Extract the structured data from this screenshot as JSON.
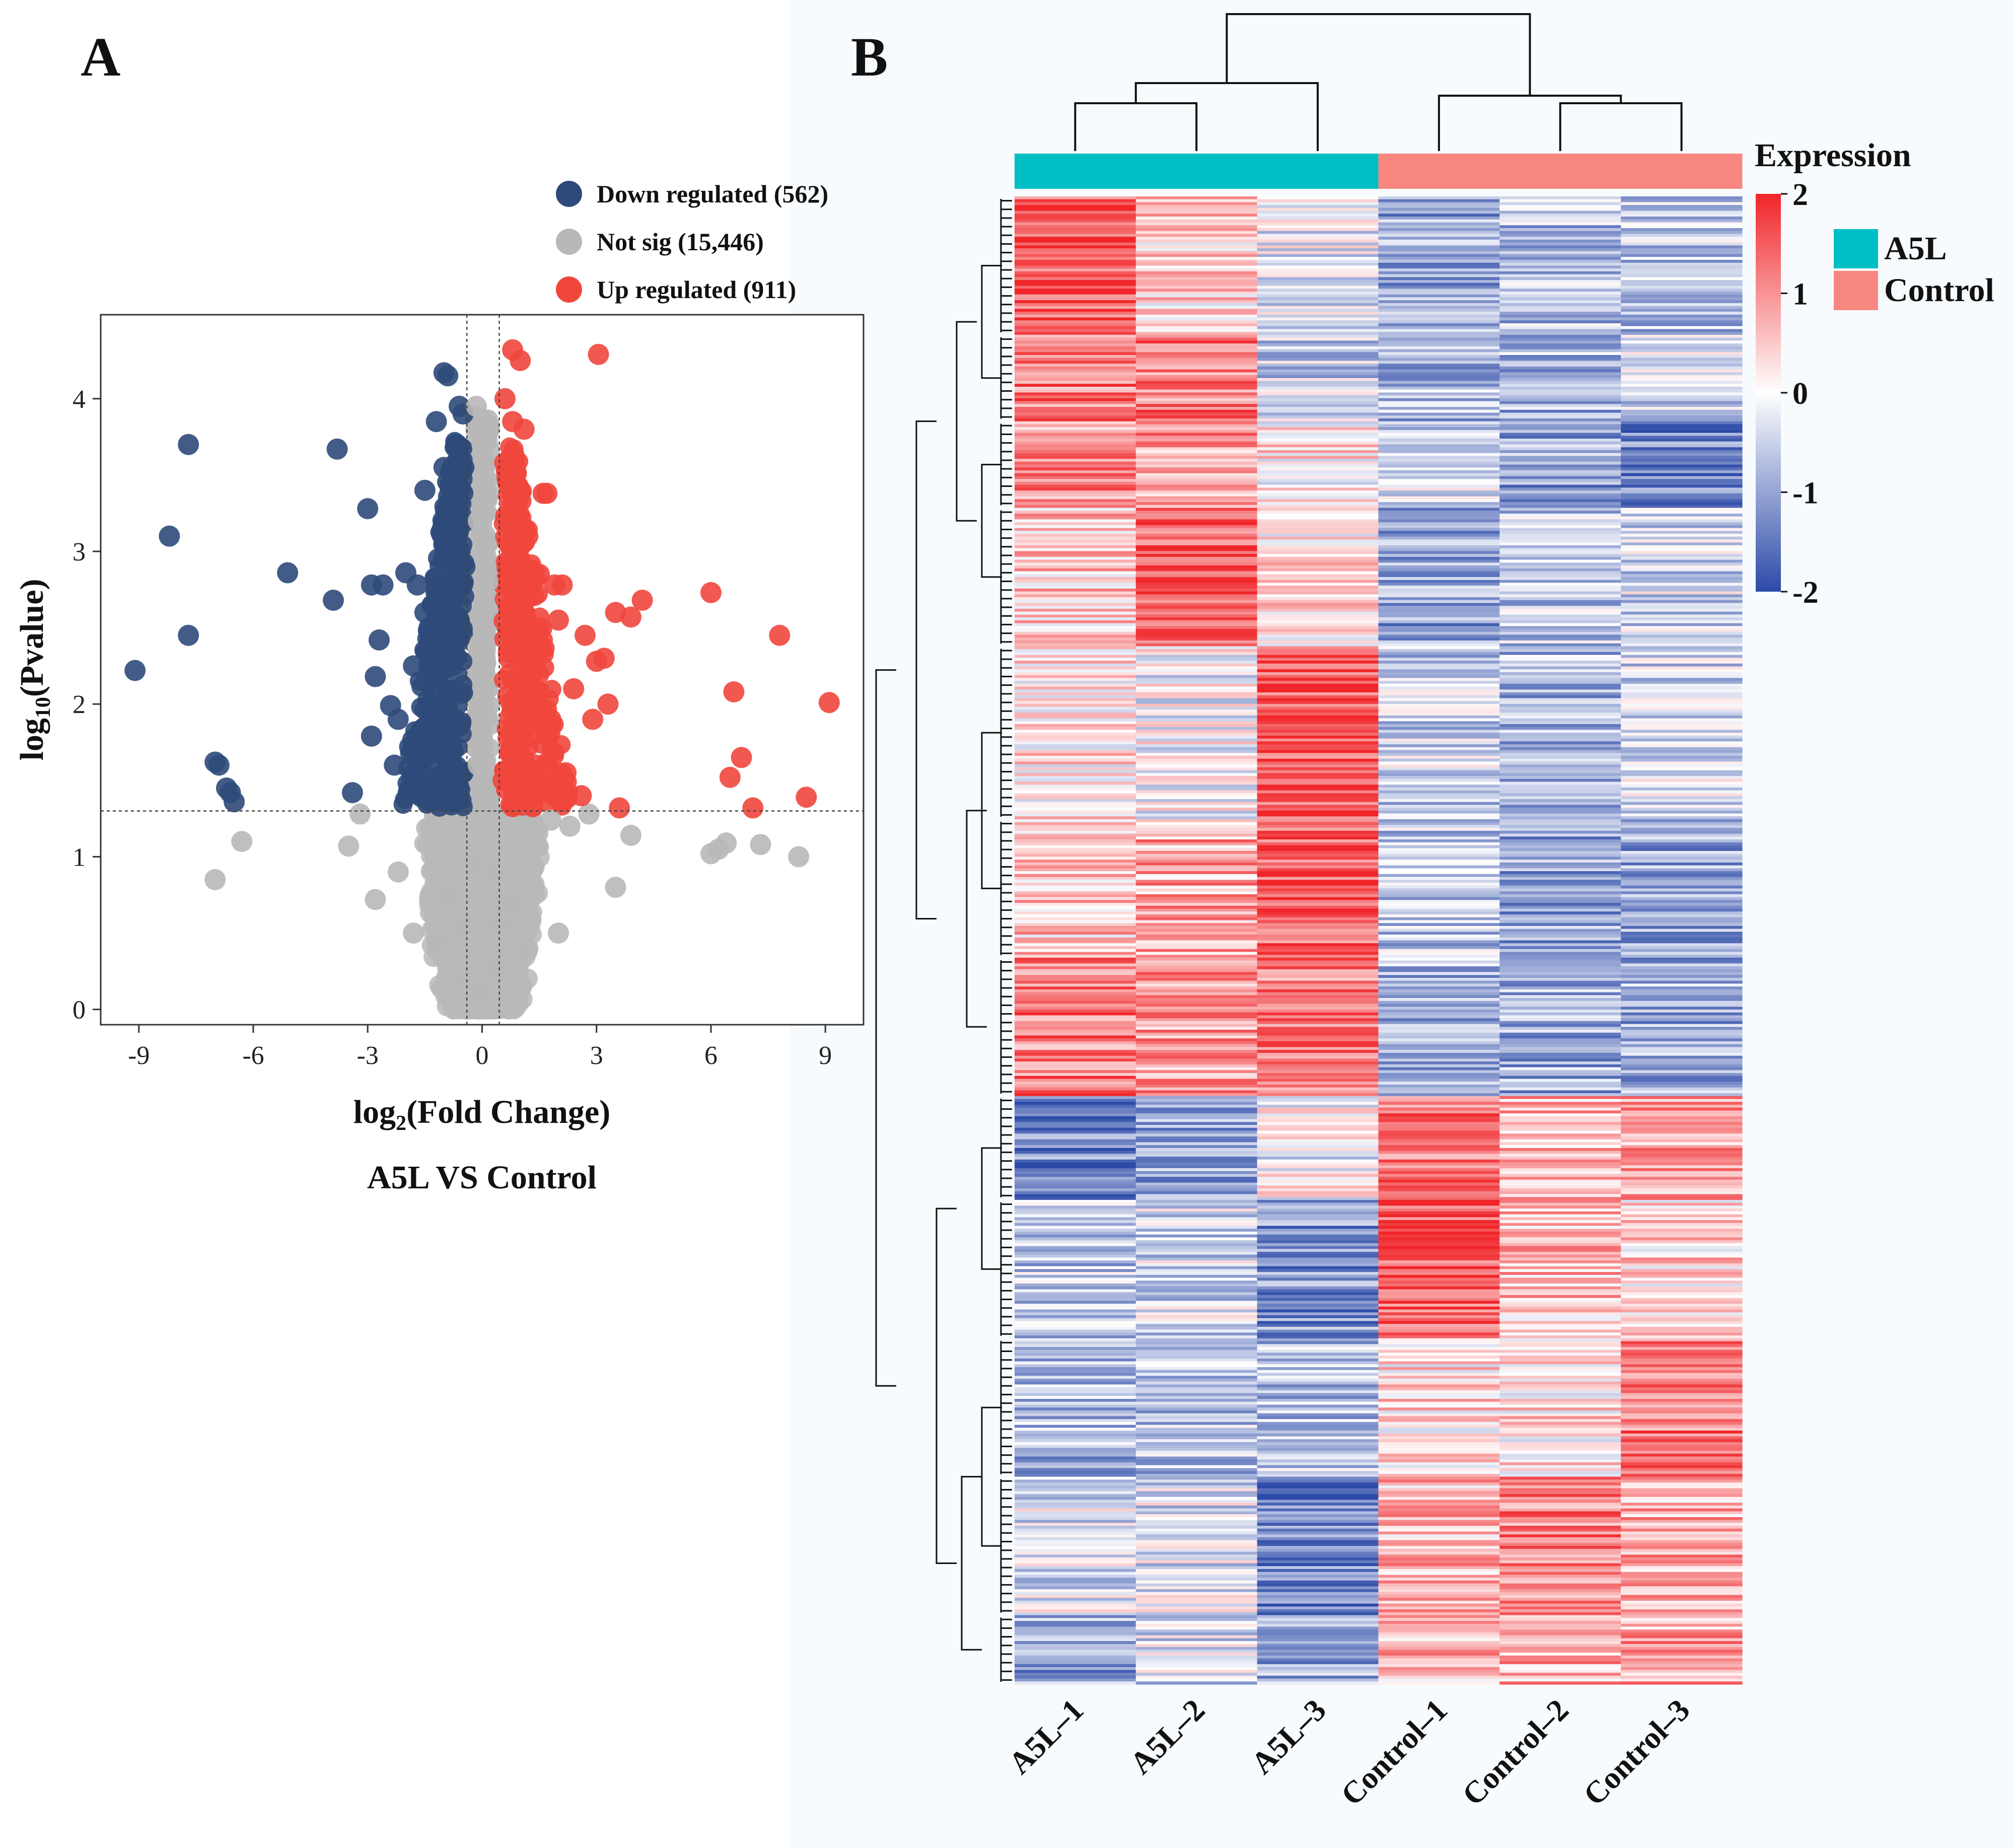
{
  "colors": {
    "down": "#2e4a7a",
    "notsig": "#b8b8b8",
    "up": "#f0463c",
    "heat_high": "#f0262a",
    "heat_mid": "#ffffff",
    "heat_low": "#2c4aa8",
    "group_a5l": "#00bfc4",
    "group_control": "#f8877f"
  },
  "panel_a": {
    "letter": "A",
    "xlabel_main": "log",
    "xlabel_sub": "2",
    "xlabel_rest": "(Fold Change)",
    "ylabel_main": "log",
    "ylabel_sub": "10",
    "ylabel_rest": "(Pvalue)",
    "comparison": "A5L VS Control",
    "legend": [
      {
        "key": "down",
        "label": "Down regulated (562)"
      },
      {
        "key": "notsig",
        "label": "Not sig (15,446)"
      },
      {
        "key": "up",
        "label": "Up regulated (911)"
      }
    ]
  },
  "panel_b": {
    "letter": "B",
    "legend_title": "Expression",
    "scale_ticks": [
      "2",
      "1",
      "0",
      "-1",
      "-2"
    ],
    "groups": [
      {
        "key": "A5L",
        "label": "A5L"
      },
      {
        "key": "Control",
        "label": "Control"
      }
    ]
  },
  "chart_data": [
    {
      "type": "scatter",
      "subtype": "volcano",
      "title": "A5L VS Control",
      "xlabel": "log2(Fold Change)",
      "ylabel": "log10(Pvalue)",
      "xlim": [
        -10,
        10
      ],
      "ylim": [
        -0.1,
        4.55
      ],
      "xticks": [
        -9,
        -6,
        -3,
        0,
        3,
        6,
        9
      ],
      "yticks": [
        0,
        1,
        2,
        3,
        4
      ],
      "fc_thresholds": [
        -0.4,
        0.45
      ],
      "p_threshold": 1.3,
      "series": [
        {
          "name": "Down regulated (562)",
          "key": "down",
          "points": [
            [
              -9.1,
              2.22
            ],
            [
              -8.2,
              3.1
            ],
            [
              -7.7,
              3.7
            ],
            [
              -7.7,
              2.45
            ],
            [
              -7.0,
              1.62
            ],
            [
              -6.9,
              1.6
            ],
            [
              -6.7,
              1.45
            ],
            [
              -6.6,
              1.42
            ],
            [
              -6.5,
              1.36
            ],
            [
              -5.1,
              2.86
            ],
            [
              -3.9,
              2.68
            ],
            [
              -3.8,
              3.67
            ],
            [
              -3.0,
              3.28
            ],
            [
              -2.9,
              2.78
            ],
            [
              -2.6,
              2.78
            ],
            [
              -2.7,
              2.42
            ],
            [
              -2.8,
              2.18
            ],
            [
              -2.4,
              1.99
            ],
            [
              -2.3,
              1.6
            ],
            [
              -2.9,
              1.79
            ],
            [
              -3.4,
              1.42
            ],
            [
              -2.0,
              2.86
            ],
            [
              -1.7,
              2.78
            ],
            [
              -1.5,
              3.4
            ],
            [
              -1.5,
              2.6
            ],
            [
              -1.8,
              2.25
            ],
            [
              -1.2,
              3.85
            ],
            [
              -1.0,
              4.17
            ],
            [
              -0.9,
              4.15
            ],
            [
              -0.6,
              3.95
            ],
            [
              -0.5,
              3.9
            ],
            [
              -0.6,
              3.6
            ],
            [
              -0.7,
              3.2
            ],
            [
              -0.9,
              3.05
            ],
            [
              -1.1,
              2.58
            ],
            [
              -1.3,
              2.0
            ],
            [
              -1.6,
              1.62
            ],
            [
              -2.2,
              1.9
            ],
            [
              -1.9,
              1.72
            ],
            [
              -1.1,
              1.45
            ],
            [
              -0.8,
              2.35
            ],
            [
              -0.5,
              1.55
            ],
            [
              -0.45,
              2.9
            ],
            [
              -0.7,
              3.5
            ],
            [
              -1.0,
              3.55
            ],
            [
              -0.8,
              1.88
            ],
            [
              -0.6,
              2.55
            ]
          ]
        },
        {
          "name": "Not sig (15,446)",
          "key": "notsig",
          "points": [
            [
              -7.0,
              0.85
            ],
            [
              -6.3,
              1.1
            ],
            [
              -3.5,
              1.07
            ],
            [
              -3.2,
              1.28
            ],
            [
              -2.8,
              0.72
            ],
            [
              -2.2,
              0.9
            ],
            [
              -1.8,
              0.5
            ],
            [
              1.8,
              1.24
            ],
            [
              2.3,
              1.2
            ],
            [
              3.5,
              0.8
            ],
            [
              3.9,
              1.14
            ],
            [
              6.0,
              1.02
            ],
            [
              6.2,
              1.05
            ],
            [
              6.4,
              1.09
            ],
            [
              7.3,
              1.08
            ],
            [
              8.3,
              1.0
            ],
            [
              2.8,
              1.28
            ],
            [
              2.0,
              0.5
            ],
            [
              -0.15,
              3.95
            ],
            [
              0.0,
              3.7
            ],
            [
              0.1,
              3.4
            ],
            [
              -0.1,
              3.2
            ],
            [
              0.15,
              2.8
            ],
            [
              -0.05,
              2.4
            ],
            [
              0.05,
              2.0
            ],
            [
              -0.1,
              1.6
            ],
            [
              0.2,
              1.3
            ],
            [
              0.3,
              0.9
            ],
            [
              -0.3,
              0.95
            ],
            [
              0.5,
              0.55
            ],
            [
              -0.5,
              0.55
            ],
            [
              0.8,
              0.7
            ],
            [
              -0.9,
              0.75
            ],
            [
              1.2,
              0.4
            ],
            [
              -1.2,
              0.45
            ],
            [
              0.0,
              0.1
            ],
            [
              0.4,
              0.25
            ],
            [
              -0.4,
              0.2
            ]
          ]
        },
        {
          "name": "Up regulated (911)",
          "key": "up",
          "points": [
            [
              0.8,
              4.32
            ],
            [
              3.05,
              4.29
            ],
            [
              1.0,
              4.25
            ],
            [
              0.6,
              4.0
            ],
            [
              0.8,
              3.85
            ],
            [
              1.1,
              3.8
            ],
            [
              0.7,
              3.6
            ],
            [
              1.2,
              3.1
            ],
            [
              1.7,
              3.38
            ],
            [
              1.6,
              3.38
            ],
            [
              1.5,
              2.85
            ],
            [
              1.9,
              2.78
            ],
            [
              2.1,
              2.78
            ],
            [
              2.0,
              2.55
            ],
            [
              2.7,
              2.45
            ],
            [
              3.5,
              2.6
            ],
            [
              3.9,
              2.57
            ],
            [
              4.2,
              2.68
            ],
            [
              6.0,
              2.73
            ],
            [
              7.8,
              2.45
            ],
            [
              3.2,
              2.3
            ],
            [
              3.0,
              2.28
            ],
            [
              2.4,
              2.1
            ],
            [
              2.9,
              1.9
            ],
            [
              3.3,
              2.0
            ],
            [
              6.6,
              2.08
            ],
            [
              9.1,
              2.01
            ],
            [
              6.8,
              1.65
            ],
            [
              6.5,
              1.52
            ],
            [
              7.1,
              1.32
            ],
            [
              8.5,
              1.39
            ],
            [
              3.6,
              1.32
            ],
            [
              2.6,
              1.4
            ],
            [
              1.4,
              1.6
            ],
            [
              1.0,
              2.1
            ],
            [
              0.7,
              2.6
            ],
            [
              0.9,
              3.3
            ],
            [
              0.55,
              1.5
            ],
            [
              1.8,
              1.9
            ],
            [
              2.2,
              1.55
            ]
          ]
        }
      ]
    },
    {
      "type": "heatmap",
      "title": "Expression",
      "samples": [
        "A5L–1",
        "A5L–2",
        "A5L–3",
        "Control–1",
        "Control–2",
        "Control–3"
      ],
      "sample_groups": [
        "A5L",
        "A5L",
        "A5L",
        "Control",
        "Control",
        "Control"
      ],
      "color_scale": {
        "min": -2,
        "max": 2,
        "ticks": [
          2,
          1,
          0,
          -1,
          -2
        ]
      },
      "column_dendrogram": "((A5L–1,A5L–2),A5L–3),(Control–1,(Control–2,Control–3))",
      "row_blocks": [
        {
          "rows": 8,
          "values": [
            1.6,
            0.4,
            -0.2,
            -1.0,
            -0.7,
            -0.6
          ]
        },
        {
          "rows": 5,
          "values": [
            1.2,
            1.2,
            -0.5,
            -0.8,
            -0.8,
            -0.5
          ]
        },
        {
          "rows": 5,
          "values": [
            1.0,
            0.9,
            0.2,
            -0.4,
            -1.0,
            -1.3
          ]
        },
        {
          "rows": 8,
          "values": [
            0.5,
            1.6,
            0.3,
            -1.0,
            -0.6,
            -0.4
          ]
        },
        {
          "rows": 10,
          "values": [
            0.2,
            -0.1,
            1.6,
            -0.5,
            -0.8,
            -0.4
          ]
        },
        {
          "rows": 8,
          "values": [
            0.5,
            0.8,
            1.5,
            -0.6,
            -1.0,
            -1.0
          ]
        },
        {
          "rows": 8,
          "values": [
            1.2,
            0.9,
            1.1,
            -0.8,
            -0.9,
            -0.9
          ]
        },
        {
          "rows": 6,
          "values": [
            -1.3,
            -0.9,
            -0.1,
            1.2,
            0.7,
            0.9
          ]
        },
        {
          "rows": 8,
          "values": [
            -0.6,
            -0.4,
            -1.2,
            1.5,
            0.6,
            0.4
          ]
        },
        {
          "rows": 8,
          "values": [
            -0.8,
            -0.6,
            -0.7,
            0.3,
            0.3,
            1.3
          ]
        },
        {
          "rows": 8,
          "values": [
            -0.3,
            -0.3,
            -1.4,
            0.6,
            1.1,
            0.7
          ]
        },
        {
          "rows": 4,
          "values": [
            -1.0,
            -0.4,
            -0.9,
            0.6,
            0.7,
            0.8
          ]
        }
      ]
    }
  ]
}
